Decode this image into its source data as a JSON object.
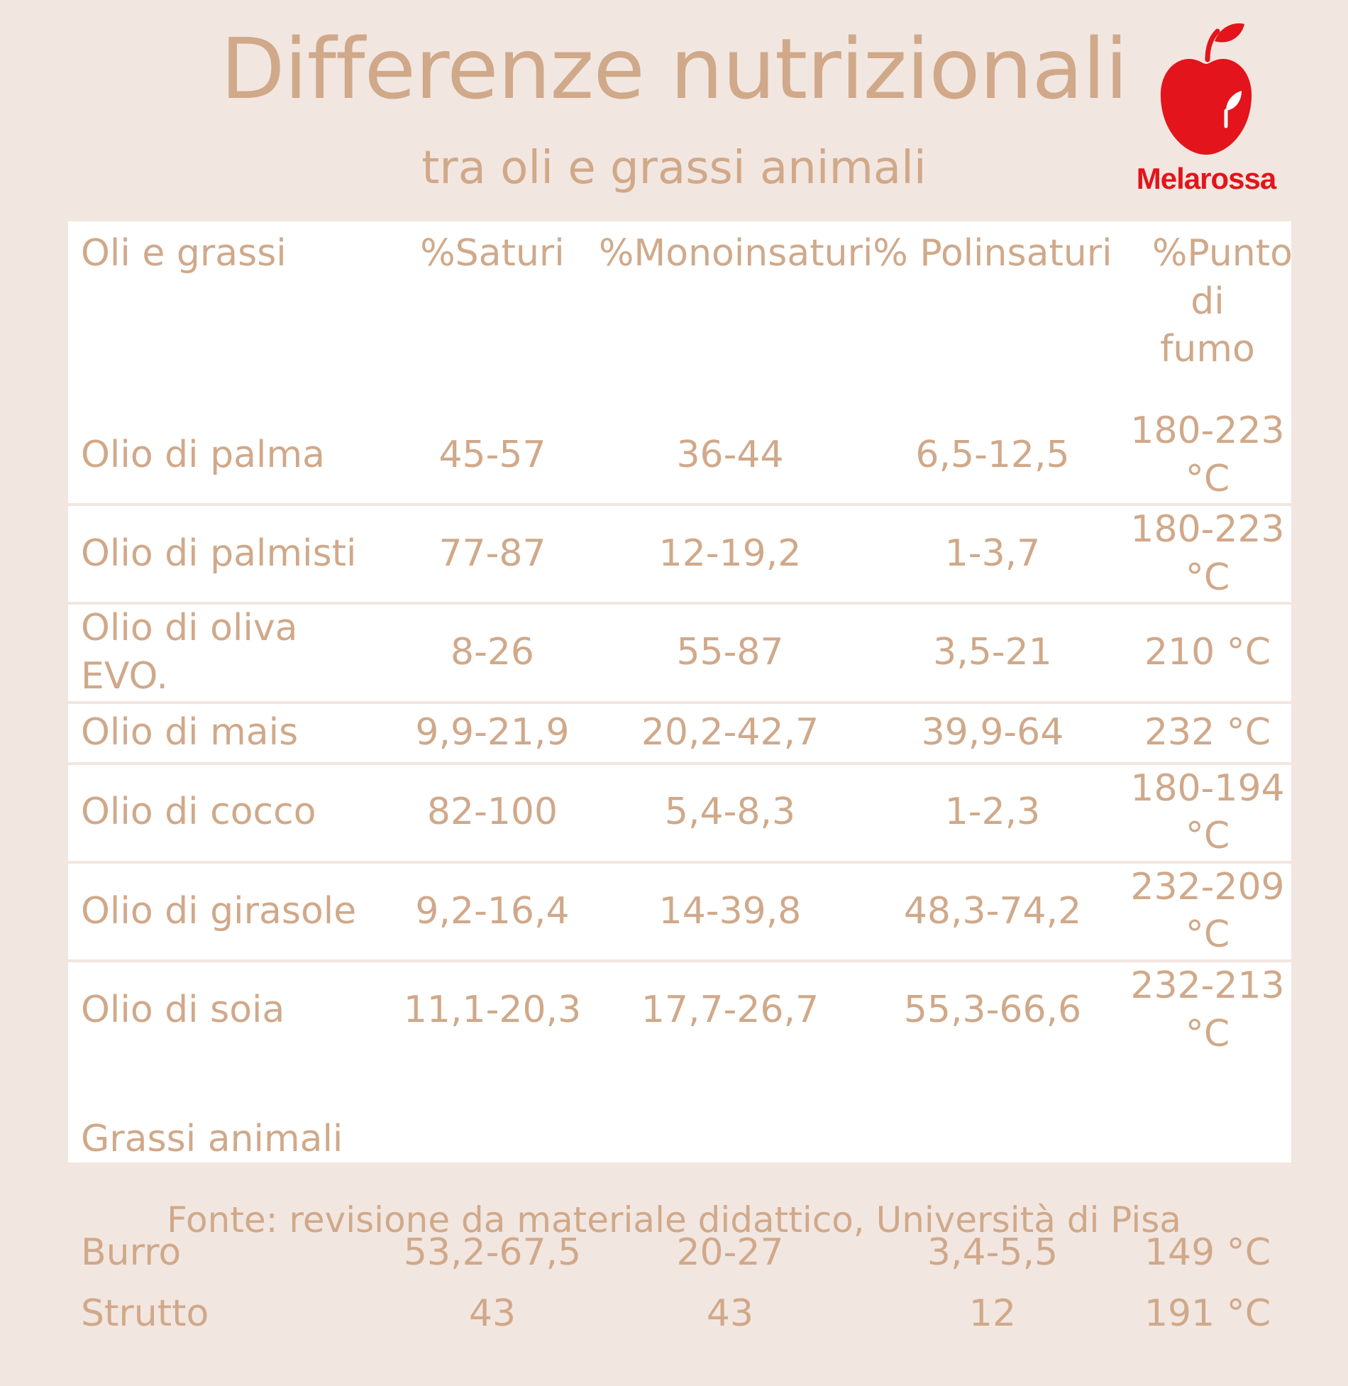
{
  "title": "Differenze nutrizionali",
  "subtitle": "tra oli e grassi animali",
  "logo": {
    "text": "Melarossa",
    "icon": "red-apple-icon",
    "color": "#e3141b"
  },
  "colors": {
    "text": "#d0a98a",
    "background": "#f2e6e0",
    "card": "#ffffff"
  },
  "chart_data": {
    "type": "table",
    "columns": [
      "Oli e grassi",
      "%Saturi",
      "%Monoinsaturi",
      "% Polinsaturi",
      "%Punto di fumo"
    ],
    "oils": [
      [
        "Olio di palma",
        "45-57",
        "36-44",
        "6,5-12,5",
        "180-223 °C"
      ],
      [
        "Olio di palmisti",
        "77-87",
        "12-19,2",
        "1-3,7",
        "180-223 °C"
      ],
      [
        "Olio di oliva EVO.",
        "8-26",
        "55-87",
        "3,5-21",
        "210 °C"
      ],
      [
        "Olio di mais",
        "9,9-21,9",
        "20,2-42,7",
        "39,9-64",
        "232 °C"
      ],
      [
        "Olio di cocco",
        "82-100",
        "5,4-8,3",
        "1-2,3",
        "180-194 °C"
      ],
      [
        "Olio di girasole",
        "9,2-16,4",
        "14-39,8",
        "48,3-74,2",
        "232-209 °C"
      ],
      [
        "Olio di soia",
        "11,1-20,3",
        "17,7-26,7",
        "55,3-66,6",
        "232-213 °C"
      ]
    ],
    "section_label": "Grassi animali",
    "animal_fats": [
      [
        "Burro",
        "53,2-67,5",
        "20-27",
        "3,4-5,5",
        "149 °C"
      ],
      [
        "Strutto",
        "43",
        "43",
        "12",
        "191 °C"
      ]
    ]
  },
  "source": "Fonte: revisione da materiale didattico, Università di Pisa"
}
